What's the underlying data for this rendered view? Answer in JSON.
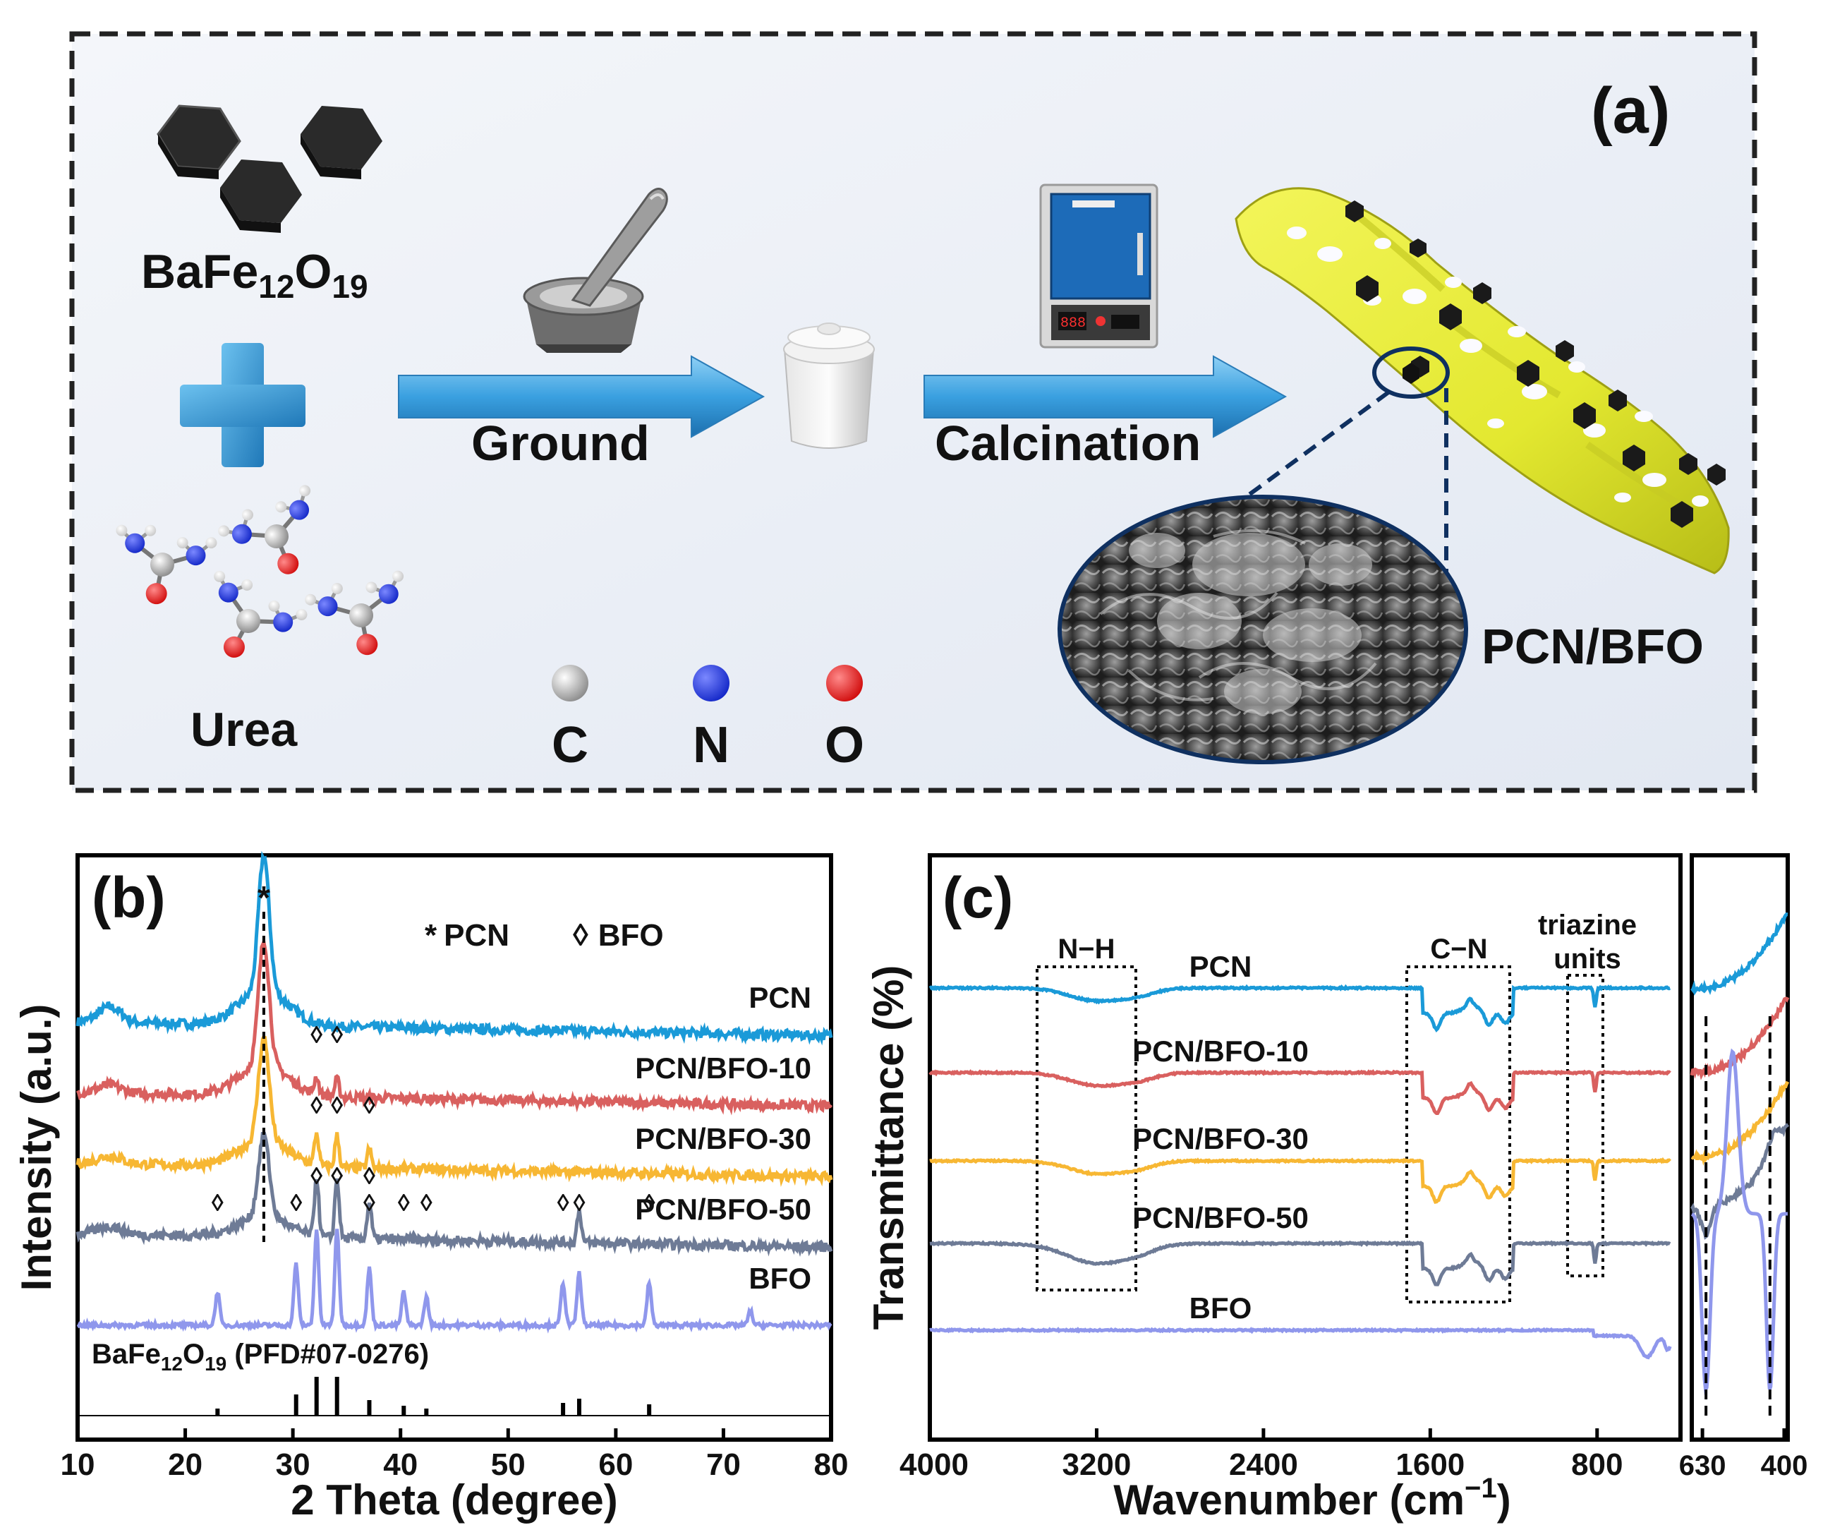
{
  "panel_a": {
    "label": "(a)",
    "precursor1": {
      "base": "BaFe",
      "sub1": "12",
      "mid": "O",
      "sub2": "19"
    },
    "precursor2": "Urea",
    "step1": "Ground",
    "step2": "Calcination",
    "product": "PCN/BFO",
    "atoms": [
      {
        "symbol": "C",
        "color": "#a8a8a8"
      },
      {
        "symbol": "N",
        "color": "#1f2fd6"
      },
      {
        "symbol": "O",
        "color": "#e01515"
      }
    ],
    "colors": {
      "arrow": "#3aa0e0",
      "sheet": "#e6ec3a",
      "plus": "#2f8fcc"
    }
  },
  "chart_data": [
    {
      "type": "line",
      "panel_label": "(b)",
      "xlabel": "2 Theta (degree)",
      "ylabel": "Intensity (a.u.)",
      "xlim": [
        10,
        80
      ],
      "xticks": [
        10,
        20,
        30,
        40,
        50,
        60,
        70,
        80
      ],
      "legend": [
        {
          "marker": "*",
          "name": "PCN"
        },
        {
          "marker": "◊",
          "name": "BFO"
        }
      ],
      "reference_label": {
        "base": "BaFe",
        "sub1": "12",
        "mid": "O",
        "sub2": "19",
        "tail": " (PFD#07-0276)"
      },
      "reference_peaks": [
        23.0,
        30.3,
        32.2,
        34.1,
        37.1,
        40.3,
        42.4,
        55.1,
        56.6,
        63.1
      ],
      "series": [
        {
          "name": "PCN",
          "color": "#1a9ad8",
          "peaks": [
            27.3
          ],
          "markers": []
        },
        {
          "name": "PCN/BFO-10",
          "color": "#d9605f",
          "peaks": [
            27.3,
            32.2,
            34.1
          ],
          "markers": [
            32.2,
            34.1
          ]
        },
        {
          "name": "PCN/BFO-30",
          "color": "#f7b733",
          "peaks": [
            27.3,
            32.2,
            34.1,
            37.1
          ],
          "markers": [
            32.2,
            34.1,
            37.1
          ]
        },
        {
          "name": "PCN/BFO-50",
          "color": "#6e7b96",
          "peaks": [
            27.3,
            32.2,
            34.1,
            37.1,
            56.6
          ],
          "markers": [
            32.2,
            34.1,
            37.1
          ]
        },
        {
          "name": "BFO",
          "color": "#8f97ec",
          "peaks": [
            23.0,
            30.3,
            32.2,
            34.1,
            37.1,
            40.3,
            42.4,
            55.1,
            56.6,
            63.1,
            72.5
          ],
          "markers": [
            23.0,
            30.3,
            37.1,
            40.3,
            42.4,
            55.1,
            56.6,
            63.1
          ]
        }
      ]
    },
    {
      "type": "line",
      "panel_label": "(c)",
      "xlabel": "Wavenumber (cm",
      "xlabel_sup": "−1",
      "xlabel_tail": ")",
      "ylabel": "Transmittance (%)",
      "xlim": [
        4000,
        400
      ],
      "xticks": [
        4000,
        3200,
        2400,
        1600,
        800
      ],
      "inset_xticks": [
        630,
        400
      ],
      "regions": [
        {
          "label": "N−H",
          "range": [
            3500,
            3000
          ]
        },
        {
          "label": "C−N",
          "range": [
            1700,
            1150
          ]
        },
        {
          "label_line1": "triazine",
          "label_line2": "units",
          "range": [
            850,
            760
          ]
        }
      ],
      "inset_markers": [
        620,
        440
      ],
      "series": [
        {
          "name": "PCN",
          "color": "#1a9ad8"
        },
        {
          "name": "PCN/BFO-10",
          "color": "#d9605f"
        },
        {
          "name": "PCN/BFO-30",
          "color": "#f7b733"
        },
        {
          "name": "PCN/BFO-50",
          "color": "#6e7b96"
        },
        {
          "name": "BFO",
          "color": "#8f97ec"
        }
      ]
    }
  ]
}
